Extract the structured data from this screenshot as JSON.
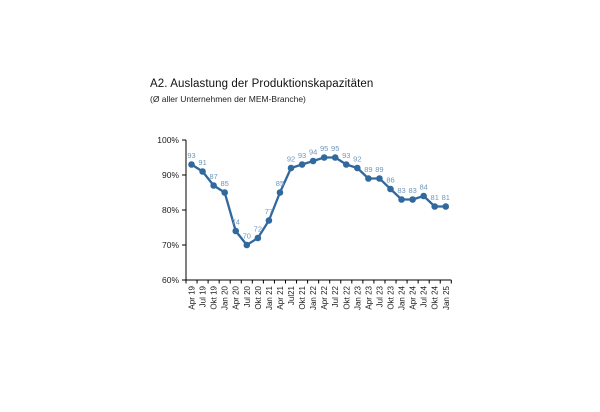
{
  "figure": {
    "title": "A2. Auslastung der Produktionskapazitäten",
    "subtitle": "(Ø aller Unternehmen der MEM-Branche)"
  },
  "chart_data": {
    "type": "line",
    "title": "A2. Auslastung der Produktionskapazitäten",
    "subtitle": "(Ø aller Unternehmen der MEM-Branche)",
    "categories": [
      "Apr 19",
      "Jul 19",
      "Okt 19",
      "Jan 20",
      "Apr 20",
      "Jul 20",
      "Okt 20",
      "Jan 21",
      "Apr 21",
      "Jul21",
      "Okt 21",
      "Jan 22",
      "Apr 22",
      "Jul 22",
      "Okt 22",
      "Jan 23",
      "Apr 23",
      "Jul 23",
      "Okt 23",
      "Jan 24",
      "Apr 24",
      "Jul 24",
      "Okt 24",
      "Jan 25"
    ],
    "values": [
      93,
      91,
      87,
      85,
      74,
      70,
      72,
      77,
      85,
      92,
      93,
      94,
      95,
      95,
      93,
      92,
      89,
      89,
      86,
      83,
      83,
      84,
      81,
      81
    ],
    "ylim": [
      60,
      100
    ],
    "y_tick_values": [
      60,
      70,
      80,
      90,
      100
    ],
    "y_tick_suffix": "%",
    "grid": false,
    "legend": "none",
    "data_labels": true,
    "colors": {
      "line": "#31699E",
      "marker": "#31699E",
      "data_label": "#6F97BD",
      "axis": "#000000",
      "text": "#1A1A1A"
    }
  }
}
